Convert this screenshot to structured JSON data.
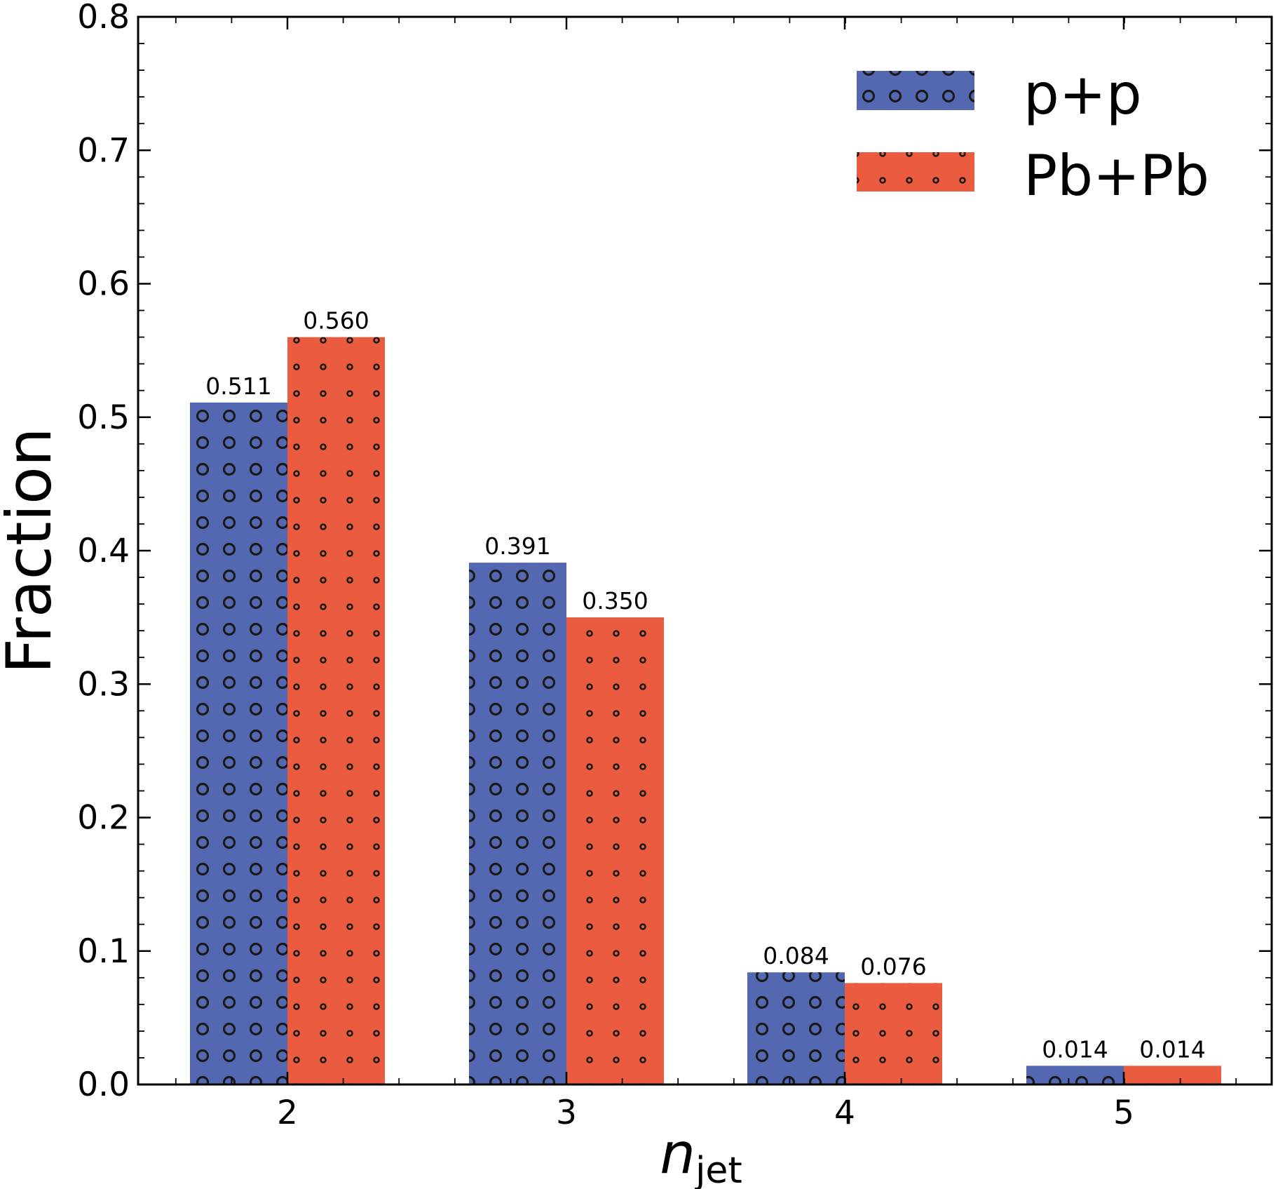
{
  "chart_data": {
    "type": "bar",
    "categories": [
      "2",
      "3",
      "4",
      "5"
    ],
    "series": [
      {
        "name": "p+p",
        "values": [
          0.511,
          0.391,
          0.084,
          0.014
        ],
        "labels": [
          "0.511",
          "0.391",
          "0.084",
          "0.014"
        ],
        "color": "#5467b1",
        "pattern": "large-circles"
      },
      {
        "name": "Pb+Pb",
        "values": [
          0.56,
          0.35,
          0.076,
          0.014
        ],
        "labels": [
          "0.560",
          "0.350",
          "0.076",
          "0.014"
        ],
        "color": "#ea5b3f",
        "pattern": "small-circles"
      }
    ],
    "xlabel": "n",
    "xlabel_sub": "jet",
    "ylabel": "Fraction",
    "ylim": [
      0,
      0.8
    ],
    "yticks": [
      "0.0",
      "0.1",
      "0.2",
      "0.3",
      "0.4",
      "0.5",
      "0.6",
      "0.7",
      "0.8"
    ],
    "grid": false,
    "legend_position": "top-right"
  }
}
